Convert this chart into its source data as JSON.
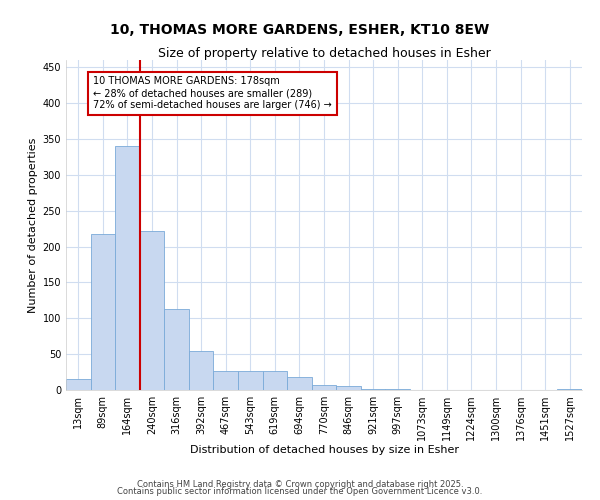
{
  "title_line1": "10, THOMAS MORE GARDENS, ESHER, KT10 8EW",
  "title_line2": "Size of property relative to detached houses in Esher",
  "xlabel": "Distribution of detached houses by size in Esher",
  "ylabel": "Number of detached properties",
  "bar_color": "#c8d8f0",
  "bar_edge_color": "#7aaad8",
  "background_color": "#ffffff",
  "grid_color": "#d0ddf0",
  "annotation_box_color": "#cc0000",
  "red_line_color": "#cc0000",
  "categories": [
    "13sqm",
    "89sqm",
    "164sqm",
    "240sqm",
    "316sqm",
    "392sqm",
    "467sqm",
    "543sqm",
    "619sqm",
    "694sqm",
    "770sqm",
    "846sqm",
    "921sqm",
    "997sqm",
    "1073sqm",
    "1149sqm",
    "1224sqm",
    "1300sqm",
    "1376sqm",
    "1451sqm",
    "1527sqm"
  ],
  "values": [
    16,
    217,
    340,
    222,
    113,
    55,
    27,
    26,
    26,
    18,
    7,
    5,
    2,
    1,
    0,
    0,
    0,
    0,
    0,
    0,
    1
  ],
  "ylim": [
    0,
    460
  ],
  "yticks": [
    0,
    50,
    100,
    150,
    200,
    250,
    300,
    350,
    400,
    450
  ],
  "red_line_bar_index": 2,
  "annotation_text": "10 THOMAS MORE GARDENS: 178sqm\n← 28% of detached houses are smaller (289)\n72% of semi-detached houses are larger (746) →",
  "footer_line1": "Contains HM Land Registry data © Crown copyright and database right 2025.",
  "footer_line2": "Contains public sector information licensed under the Open Government Licence v3.0.",
  "title_fontsize": 10,
  "subtitle_fontsize": 9,
  "axis_label_fontsize": 8,
  "tick_fontsize": 7,
  "annotation_fontsize": 7,
  "footer_fontsize": 6
}
